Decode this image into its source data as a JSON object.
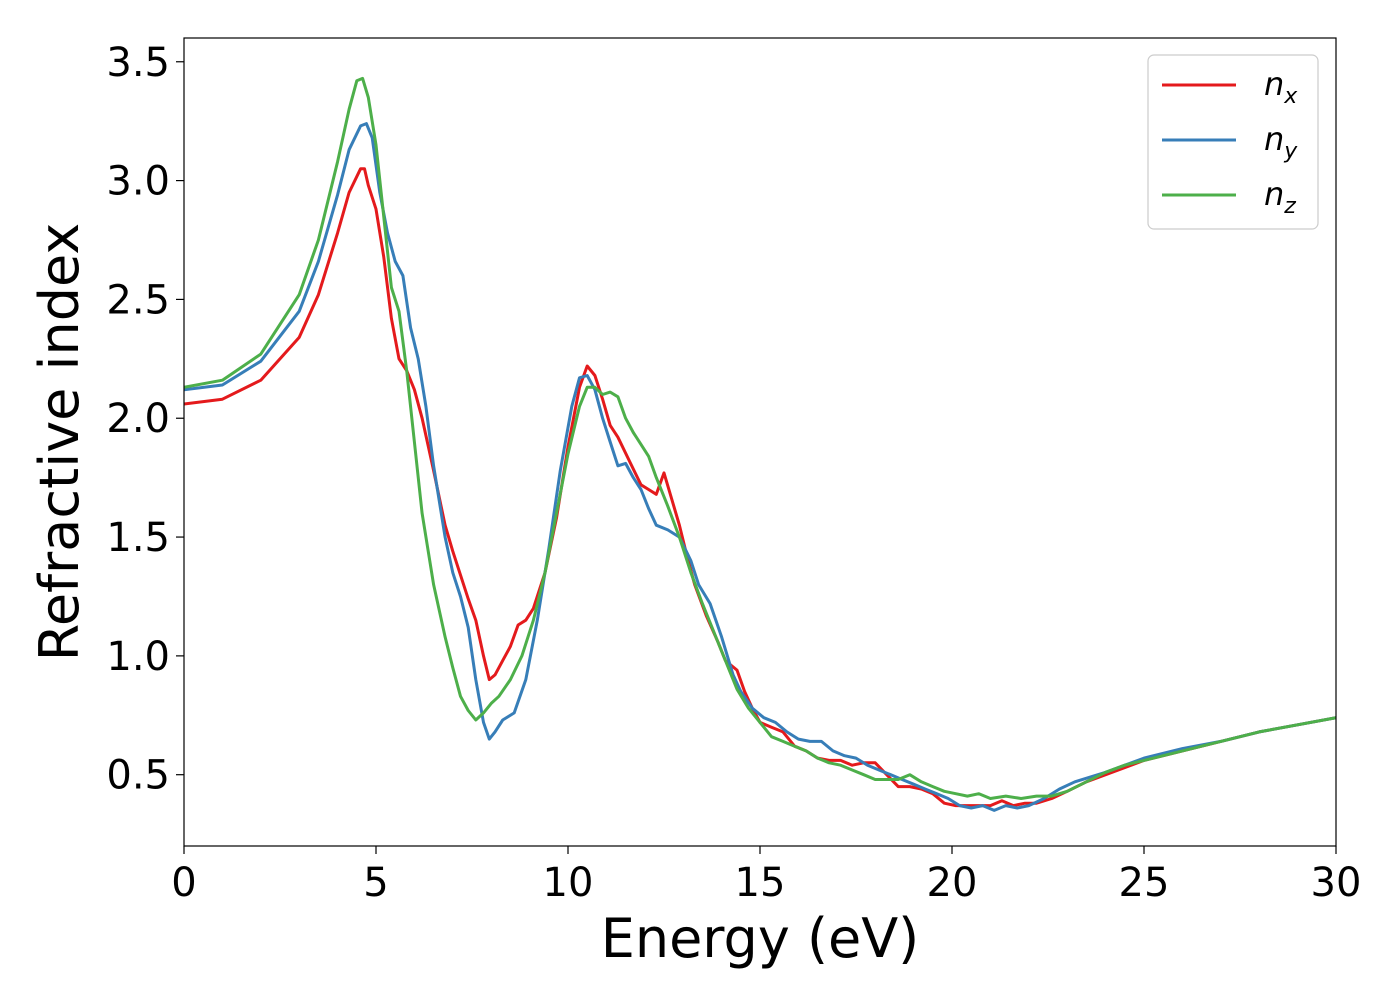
{
  "chart_data": {
    "type": "line",
    "title": "",
    "xlabel": "Energy (eV)",
    "ylabel": "Refractive index",
    "xlim": [
      0,
      30
    ],
    "ylim": [
      0.2,
      3.6
    ],
    "xticks": [
      0,
      5,
      10,
      15,
      20,
      25,
      30
    ],
    "xtick_labels": [
      "0",
      "5",
      "10",
      "15",
      "20",
      "25",
      "30"
    ],
    "yticks": [
      0.5,
      1.0,
      1.5,
      2.0,
      2.5,
      3.0,
      3.5
    ],
    "ytick_labels": [
      "0.5",
      "1.0",
      "1.5",
      "2.0",
      "2.5",
      "3.0",
      "3.5"
    ],
    "grid": false,
    "legend_position": "top-right",
    "series": [
      {
        "name": "n_x",
        "label_base": "n",
        "label_sub": "x",
        "color": "#e41a1c",
        "x": [
          0,
          1,
          2,
          3,
          3.5,
          4,
          4.3,
          4.6,
          4.7,
          4.8,
          5.0,
          5.2,
          5.4,
          5.6,
          5.8,
          6.0,
          6.2,
          6.5,
          6.8,
          7.0,
          7.2,
          7.4,
          7.6,
          7.8,
          7.95,
          8.1,
          8.3,
          8.5,
          8.7,
          8.9,
          9.1,
          9.4,
          9.7,
          10.0,
          10.3,
          10.5,
          10.7,
          10.9,
          11.1,
          11.3,
          11.6,
          11.9,
          12.1,
          12.3,
          12.5,
          12.7,
          12.9,
          13.1,
          13.3,
          13.6,
          13.9,
          14.1,
          14.4,
          14.6,
          14.8,
          15.0,
          15.3,
          15.6,
          15.9,
          16.2,
          16.5,
          16.8,
          17.1,
          17.4,
          17.7,
          18.0,
          18.3,
          18.6,
          18.9,
          19.2,
          19.5,
          19.8,
          20.1,
          20.4,
          20.7,
          21.0,
          21.3,
          21.6,
          21.9,
          22.2,
          22.6,
          23.0,
          23.5,
          24.0,
          24.5,
          25.0,
          26.0,
          27.0,
          28.0,
          29.0,
          30.0
        ],
        "y": [
          2.06,
          2.08,
          2.16,
          2.34,
          2.52,
          2.78,
          2.95,
          3.05,
          3.05,
          2.98,
          2.88,
          2.68,
          2.42,
          2.25,
          2.2,
          2.12,
          2.0,
          1.78,
          1.55,
          1.44,
          1.34,
          1.24,
          1.15,
          1.0,
          0.9,
          0.92,
          0.98,
          1.04,
          1.13,
          1.15,
          1.2,
          1.35,
          1.58,
          1.88,
          2.13,
          2.22,
          2.18,
          2.08,
          1.97,
          1.92,
          1.82,
          1.72,
          1.7,
          1.68,
          1.77,
          1.66,
          1.55,
          1.42,
          1.3,
          1.17,
          1.06,
          0.98,
          0.94,
          0.85,
          0.78,
          0.72,
          0.7,
          0.68,
          0.62,
          0.6,
          0.57,
          0.56,
          0.56,
          0.54,
          0.55,
          0.55,
          0.5,
          0.45,
          0.45,
          0.44,
          0.42,
          0.38,
          0.37,
          0.37,
          0.37,
          0.37,
          0.39,
          0.37,
          0.38,
          0.38,
          0.4,
          0.43,
          0.47,
          0.5,
          0.53,
          0.56,
          0.6,
          0.64,
          0.68,
          0.71,
          0.74
        ]
      },
      {
        "name": "n_y",
        "label_base": "n",
        "label_sub": "y",
        "color": "#377eb8",
        "x": [
          0,
          1,
          2,
          3,
          3.5,
          4,
          4.3,
          4.6,
          4.75,
          4.9,
          5.1,
          5.3,
          5.5,
          5.7,
          5.9,
          6.1,
          6.3,
          6.5,
          6.8,
          7.0,
          7.2,
          7.4,
          7.6,
          7.8,
          7.95,
          8.1,
          8.3,
          8.6,
          8.9,
          9.2,
          9.5,
          9.8,
          10.1,
          10.3,
          10.5,
          10.7,
          10.9,
          11.1,
          11.3,
          11.5,
          11.7,
          11.9,
          12.1,
          12.3,
          12.6,
          12.9,
          13.2,
          13.4,
          13.7,
          14.0,
          14.3,
          14.5,
          14.8,
          15.1,
          15.4,
          15.7,
          16.0,
          16.3,
          16.6,
          16.9,
          17.2,
          17.5,
          17.8,
          18.1,
          18.4,
          18.7,
          19.0,
          19.3,
          19.6,
          19.9,
          20.2,
          20.5,
          20.8,
          21.1,
          21.4,
          21.7,
          22.0,
          22.4,
          22.8,
          23.2,
          23.6,
          24.0,
          24.5,
          25.0,
          26.0,
          27.0,
          28.0,
          29.0,
          30.0
        ],
        "y": [
          2.12,
          2.14,
          2.24,
          2.45,
          2.66,
          2.94,
          3.13,
          3.23,
          3.24,
          3.18,
          2.95,
          2.78,
          2.66,
          2.6,
          2.38,
          2.25,
          2.05,
          1.8,
          1.5,
          1.35,
          1.25,
          1.12,
          0.9,
          0.72,
          0.65,
          0.68,
          0.73,
          0.76,
          0.9,
          1.15,
          1.45,
          1.78,
          2.05,
          2.17,
          2.18,
          2.12,
          2.0,
          1.9,
          1.8,
          1.81,
          1.75,
          1.7,
          1.62,
          1.55,
          1.53,
          1.5,
          1.4,
          1.3,
          1.22,
          1.08,
          0.92,
          0.85,
          0.78,
          0.74,
          0.72,
          0.68,
          0.65,
          0.64,
          0.64,
          0.6,
          0.58,
          0.57,
          0.54,
          0.52,
          0.5,
          0.48,
          0.46,
          0.44,
          0.42,
          0.4,
          0.37,
          0.36,
          0.37,
          0.35,
          0.37,
          0.36,
          0.37,
          0.4,
          0.44,
          0.47,
          0.49,
          0.51,
          0.54,
          0.57,
          0.61,
          0.64,
          0.68,
          0.71,
          0.74
        ]
      },
      {
        "name": "n_z",
        "label_base": "n",
        "label_sub": "z",
        "color": "#4daf4a",
        "x": [
          0,
          1,
          2,
          3,
          3.5,
          4,
          4.3,
          4.5,
          4.65,
          4.8,
          5.0,
          5.2,
          5.4,
          5.6,
          5.8,
          6.0,
          6.2,
          6.5,
          6.8,
          7.0,
          7.2,
          7.4,
          7.6,
          7.8,
          8.0,
          8.2,
          8.5,
          8.8,
          9.1,
          9.4,
          9.7,
          10.0,
          10.3,
          10.5,
          10.7,
          10.9,
          11.1,
          11.3,
          11.5,
          11.7,
          11.9,
          12.1,
          12.3,
          12.6,
          12.9,
          13.2,
          13.5,
          13.8,
          14.1,
          14.4,
          14.7,
          15.0,
          15.3,
          15.6,
          15.9,
          16.2,
          16.5,
          16.8,
          17.1,
          17.4,
          17.7,
          18.0,
          18.3,
          18.6,
          18.9,
          19.2,
          19.5,
          19.8,
          20.1,
          20.4,
          20.7,
          21.0,
          21.4,
          21.8,
          22.2,
          22.6,
          23.0,
          23.5,
          24.0,
          24.5,
          25.0,
          26.0,
          27.0,
          28.0,
          29.0,
          30.0
        ],
        "y": [
          2.13,
          2.16,
          2.27,
          2.52,
          2.75,
          3.08,
          3.3,
          3.42,
          3.43,
          3.35,
          3.15,
          2.85,
          2.55,
          2.45,
          2.2,
          1.9,
          1.6,
          1.3,
          1.08,
          0.95,
          0.83,
          0.77,
          0.73,
          0.76,
          0.8,
          0.83,
          0.9,
          1.0,
          1.15,
          1.35,
          1.6,
          1.85,
          2.05,
          2.13,
          2.13,
          2.1,
          2.11,
          2.09,
          2.0,
          1.94,
          1.89,
          1.84,
          1.75,
          1.63,
          1.5,
          1.35,
          1.22,
          1.1,
          0.98,
          0.86,
          0.78,
          0.72,
          0.66,
          0.64,
          0.62,
          0.6,
          0.57,
          0.55,
          0.54,
          0.52,
          0.5,
          0.48,
          0.48,
          0.48,
          0.5,
          0.47,
          0.45,
          0.43,
          0.42,
          0.41,
          0.42,
          0.4,
          0.41,
          0.4,
          0.41,
          0.41,
          0.43,
          0.47,
          0.51,
          0.54,
          0.56,
          0.6,
          0.64,
          0.68,
          0.71,
          0.74
        ]
      }
    ]
  }
}
